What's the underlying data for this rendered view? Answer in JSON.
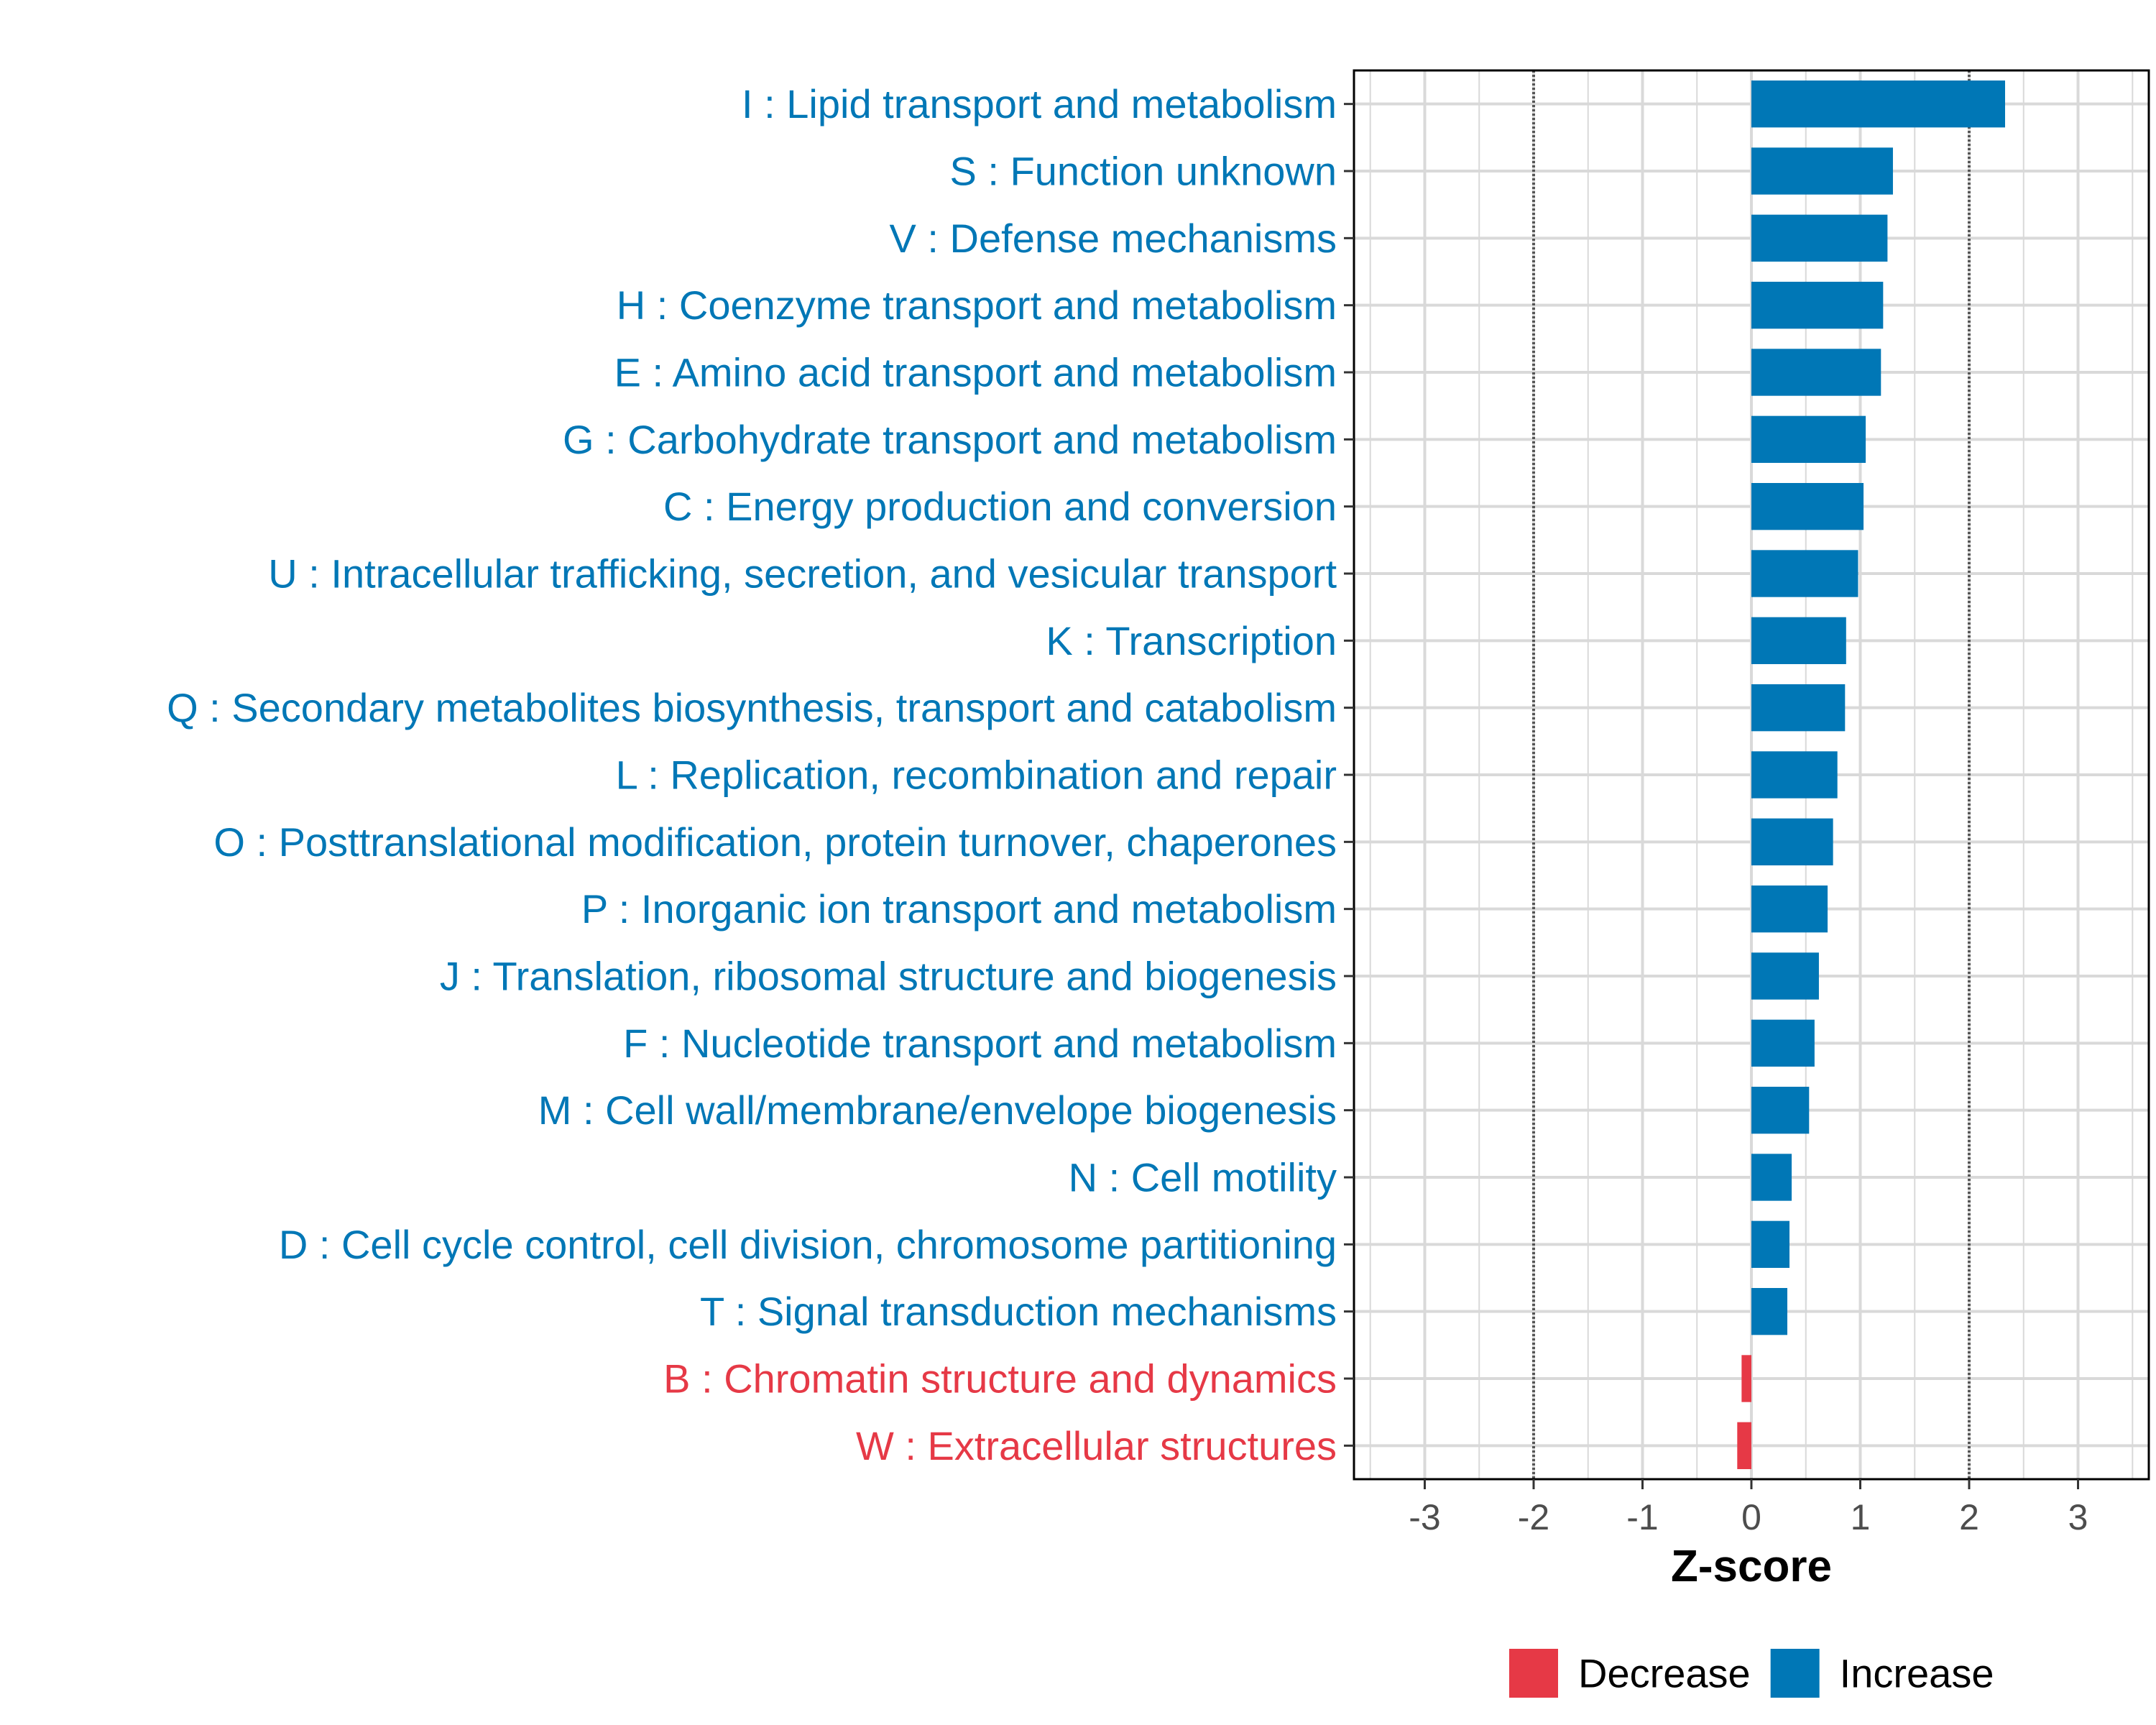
{
  "chart_data": {
    "type": "bar",
    "orientation": "horizontal",
    "xlabel": "Z-score",
    "xlim": [
      -3.65,
      3.65
    ],
    "xticks": [
      -3,
      -2,
      -1,
      0,
      1,
      2,
      3
    ],
    "xtick_labels": [
      "-3",
      "-2",
      "-1",
      "0",
      "1",
      "2",
      "3"
    ],
    "reference_lines": [
      -2,
      2
    ],
    "grid": true,
    "categories": [
      "I : Lipid transport and metabolism",
      "S : Function unknown",
      "V : Defense mechanisms",
      "H : Coenzyme transport and metabolism",
      "E : Amino acid transport and metabolism",
      "G : Carbohydrate transport and metabolism",
      "C : Energy production and conversion",
      "U : Intracellular trafficking, secretion, and vesicular transport",
      "K : Transcription",
      "Q : Secondary metabolites biosynthesis, transport and catabolism",
      "L : Replication, recombination and repair",
      "O : Posttranslational modification, protein turnover, chaperones",
      "P : Inorganic ion transport and metabolism",
      "J : Translation, ribosomal structure and biogenesis",
      "F : Nucleotide transport and metabolism",
      "M : Cell wall/membrane/envelope biogenesis",
      "N : Cell motility",
      "D : Cell cycle control, cell division, chromosome partitioning",
      "T : Signal transduction mechanisms",
      "B : Chromatin structure and dynamics",
      "W : Extracellular structures"
    ],
    "values": [
      2.33,
      1.3,
      1.25,
      1.21,
      1.19,
      1.05,
      1.03,
      0.98,
      0.87,
      0.86,
      0.79,
      0.75,
      0.7,
      0.62,
      0.58,
      0.53,
      0.37,
      0.35,
      0.33,
      -0.09,
      -0.13
    ],
    "groups": [
      "Increase",
      "Increase",
      "Increase",
      "Increase",
      "Increase",
      "Increase",
      "Increase",
      "Increase",
      "Increase",
      "Increase",
      "Increase",
      "Increase",
      "Increase",
      "Increase",
      "Increase",
      "Increase",
      "Increase",
      "Increase",
      "Increase",
      "Decrease",
      "Decrease"
    ],
    "legend": [
      {
        "label": "Decrease",
        "color": "#e63946"
      },
      {
        "label": "Increase",
        "color": "#0077b6"
      }
    ],
    "legend_position": "bottom"
  },
  "colors": {
    "increase": "#0077b6",
    "decrease": "#e63946",
    "grid": "#d9d9d9",
    "reference_line": "#555555",
    "panel_border": "#000000"
  }
}
